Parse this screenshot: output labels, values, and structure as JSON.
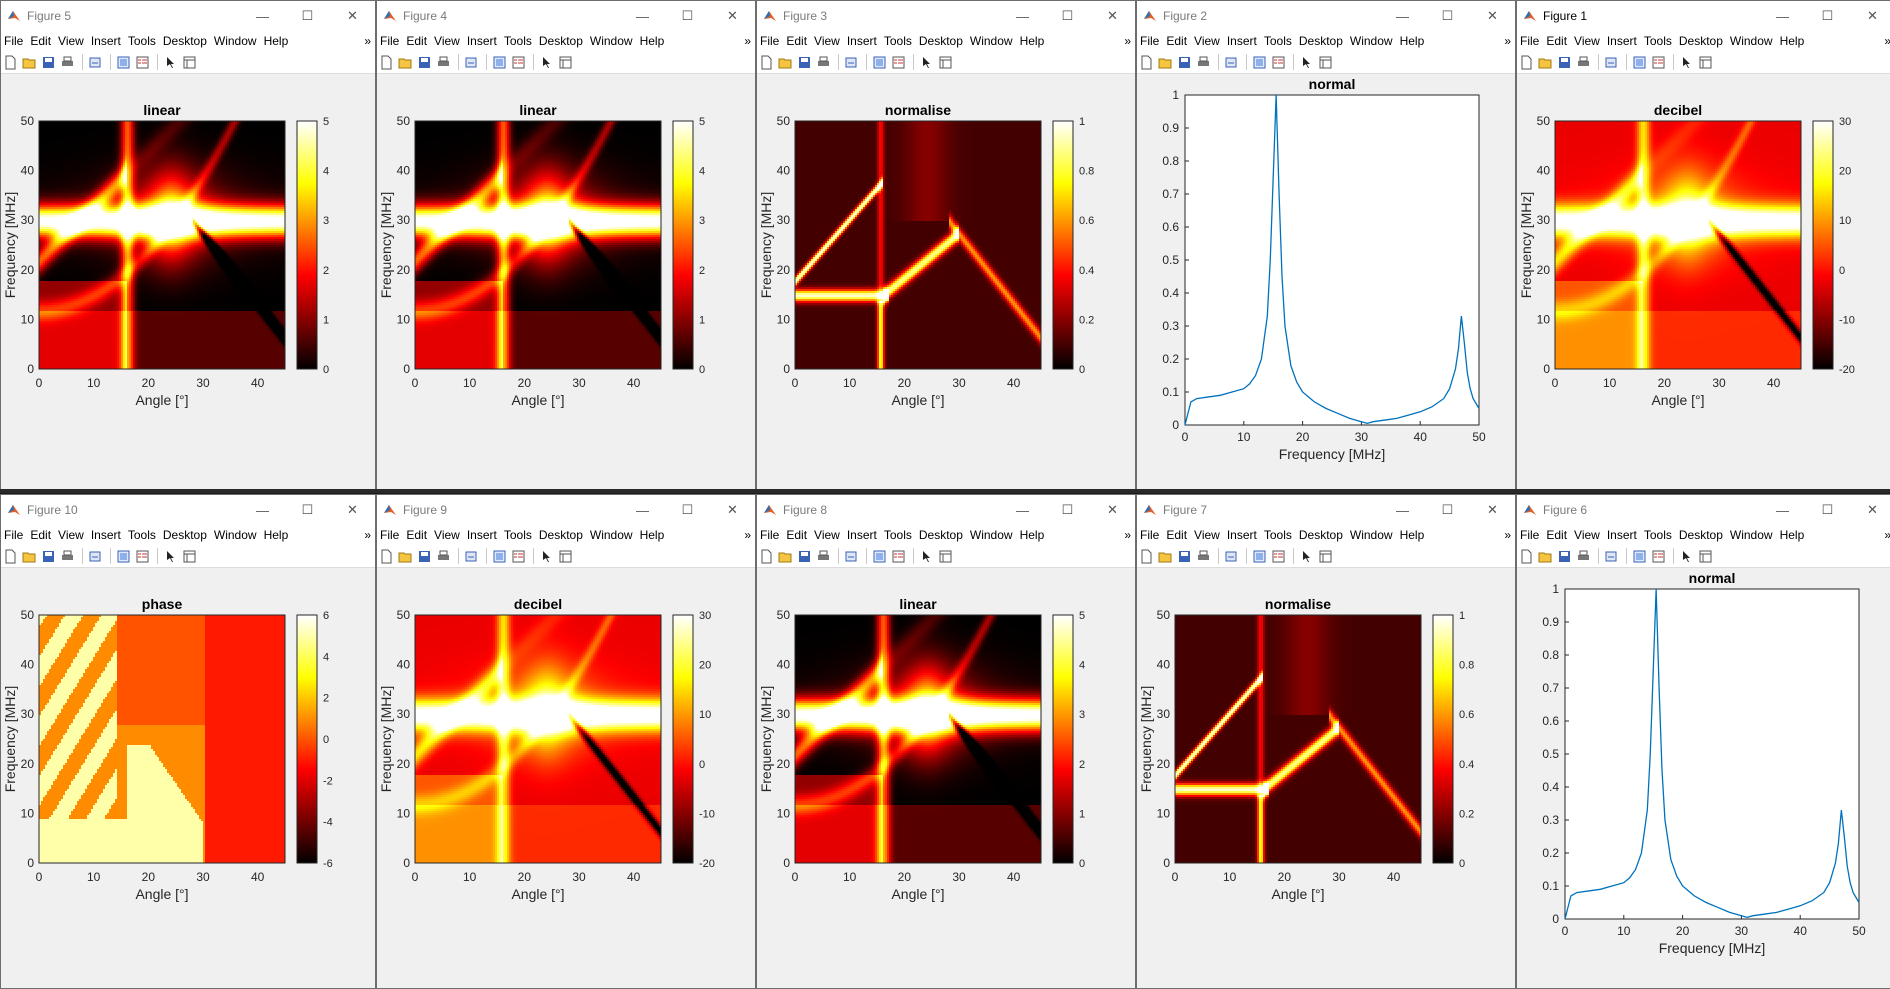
{
  "menu": [
    "File",
    "Edit",
    "View",
    "Insert",
    "Tools",
    "Desktop",
    "Window",
    "Help"
  ],
  "menu_more": "»",
  "common": {
    "freq_label": "Frequency [MHz]",
    "angle_label": "Angle [°]",
    "angle_ticks": [
      "0",
      "10",
      "20",
      "30",
      "40"
    ],
    "freq_ticks": [
      "0",
      "10",
      "20",
      "30",
      "40",
      "50"
    ],
    "line_y_ticks": [
      "0",
      "0.1",
      "0.2",
      "0.3",
      "0.4",
      "0.5",
      "0.6",
      "0.7",
      "0.8",
      "0.9",
      "1"
    ]
  },
  "colors": {
    "line": "#0072bd",
    "titlebar": "#ffffff",
    "figure_bg": "#f0f0f0"
  },
  "windows": [
    {
      "id": "fig5",
      "title": "Figure 5",
      "plot_title": "linear",
      "kind": "linear",
      "cb": [
        "5",
        "4",
        "3",
        "2",
        "1",
        "0"
      ]
    },
    {
      "id": "fig4",
      "title": "Figure 4",
      "plot_title": "linear",
      "kind": "linear",
      "cb": [
        "5",
        "4",
        "3",
        "2",
        "1",
        "0"
      ]
    },
    {
      "id": "fig3",
      "title": "Figure 3",
      "plot_title": "normalise",
      "kind": "normalise",
      "cb": [
        "1",
        "0.8",
        "0.6",
        "0.4",
        "0.2",
        "0"
      ]
    },
    {
      "id": "fig2",
      "title": "Figure 2",
      "plot_title": "normal",
      "kind": "line"
    },
    {
      "id": "fig1",
      "title": "Figure 1",
      "plot_title": "decibel",
      "kind": "decibel",
      "cb": [
        "30",
        "20",
        "10",
        "0",
        "-10",
        "-20"
      ]
    },
    {
      "id": "fig10",
      "title": "Figure 10",
      "plot_title": "phase",
      "kind": "phase",
      "cb": [
        "6",
        "4",
        "2",
        "0",
        "-2",
        "-4",
        "-6"
      ]
    },
    {
      "id": "fig9",
      "title": "Figure 9",
      "plot_title": "decibel",
      "kind": "decibel",
      "cb": [
        "30",
        "20",
        "10",
        "0",
        "-10",
        "-20"
      ]
    },
    {
      "id": "fig8",
      "title": "Figure 8",
      "plot_title": "linear",
      "kind": "linear",
      "cb": [
        "5",
        "4",
        "3",
        "2",
        "1",
        "0"
      ]
    },
    {
      "id": "fig7",
      "title": "Figure 7",
      "plot_title": "normalise",
      "kind": "normalise",
      "cb": [
        "1",
        "0.8",
        "0.6",
        "0.4",
        "0.2",
        "0"
      ]
    },
    {
      "id": "fig6",
      "title": "Figure 6",
      "plot_title": "normal",
      "kind": "line"
    }
  ],
  "chart_data": {
    "type": "line",
    "title": "normal",
    "xlabel": "Frequency [MHz]",
    "ylabel": "",
    "xlim": [
      0,
      50
    ],
    "ylim": [
      0,
      1
    ],
    "series": [
      {
        "x": [
          0,
          1,
          2,
          4,
          6,
          8,
          10,
          11,
          12,
          13,
          14,
          14.5,
          15,
          15.5,
          16,
          16.5,
          17,
          18,
          19,
          20,
          22,
          24,
          26,
          28,
          30,
          31,
          32,
          34,
          36,
          38,
          40,
          42,
          44,
          45,
          46,
          46.5,
          47,
          47.5,
          48,
          48.5,
          49,
          50
        ],
        "values": [
          0,
          0.07,
          0.08,
          0.085,
          0.09,
          0.1,
          0.11,
          0.125,
          0.15,
          0.2,
          0.33,
          0.5,
          0.75,
          1.0,
          0.7,
          0.45,
          0.3,
          0.18,
          0.13,
          0.1,
          0.07,
          0.05,
          0.035,
          0.02,
          0.01,
          0.005,
          0.01,
          0.015,
          0.02,
          0.03,
          0.04,
          0.055,
          0.08,
          0.11,
          0.17,
          0.23,
          0.33,
          0.25,
          0.16,
          0.11,
          0.08,
          0.05
        ]
      }
    ]
  }
}
